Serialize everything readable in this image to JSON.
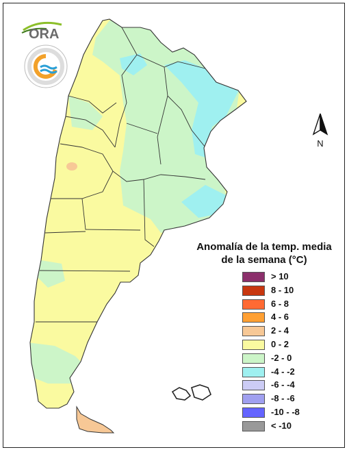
{
  "logo": {
    "ora_text": "ORA"
  },
  "north_arrow": {
    "label": "N",
    "icon": "north-arrow-icon"
  },
  "legend": {
    "title_line1": "Anomalía de la temp. media",
    "title_line2": "de la semana (°C)",
    "items": [
      {
        "label": "> 10",
        "color": "#8b2f6b"
      },
      {
        "label": "8 - 10",
        "color": "#c8370f"
      },
      {
        "label": "6 - 8",
        "color": "#ff6a33"
      },
      {
        "label": "4 - 6",
        "color": "#ffa033"
      },
      {
        "label": "2 - 4",
        "color": "#f7c896"
      },
      {
        "label": "0 - 2",
        "color": "#fafaa0"
      },
      {
        "label": "-2 - 0",
        "color": "#ccf5c8"
      },
      {
        "label": "-4 - -2",
        "color": "#9ff0f0"
      },
      {
        "label": "-6 - -4",
        "color": "#ccccf5"
      },
      {
        "label": "-8 - -6",
        "color": "#a0a0f0"
      },
      {
        "label": "-10 - -8",
        "color": "#6464ff"
      },
      {
        "label": "< -10",
        "color": "#999999"
      }
    ]
  }
}
